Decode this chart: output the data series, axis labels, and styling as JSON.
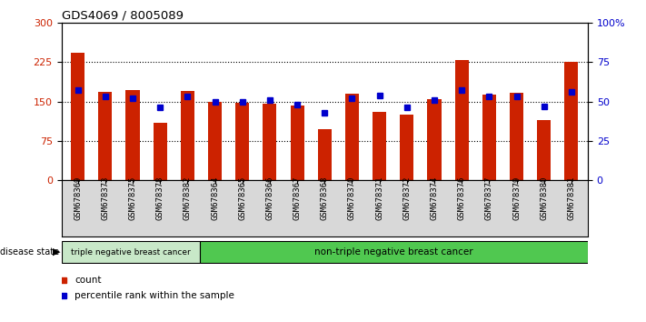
{
  "title": "GDS4069 / 8005089",
  "samples": [
    "GSM678369",
    "GSM678373",
    "GSM678375",
    "GSM678378",
    "GSM678382",
    "GSM678364",
    "GSM678365",
    "GSM678366",
    "GSM678367",
    "GSM678368",
    "GSM678370",
    "GSM678371",
    "GSM678372",
    "GSM678374",
    "GSM678376",
    "GSM678377",
    "GSM678379",
    "GSM678380",
    "GSM678381"
  ],
  "counts": [
    242,
    168,
    172,
    110,
    170,
    150,
    148,
    145,
    143,
    97,
    165,
    130,
    125,
    155,
    228,
    163,
    167,
    115,
    226
  ],
  "percentiles": [
    57,
    53,
    52,
    46,
    53,
    50,
    50,
    51,
    48,
    43,
    52,
    54,
    46,
    51,
    57,
    53,
    53,
    47,
    56
  ],
  "triple_neg_count": 5,
  "label_triple": "triple negative breast cancer",
  "label_ntriple": "non-triple negative breast cancer",
  "color_triple": "#c8e8c8",
  "color_ntriple": "#50c850",
  "y_left_ticks": [
    0,
    75,
    150,
    225,
    300
  ],
  "y_right_ticks": [
    0,
    25,
    50,
    75,
    100
  ],
  "bar_color": "#cc2200",
  "dot_color": "#0000cc",
  "tick_color_left": "#cc2200",
  "tick_color_right": "#0000cc",
  "legend_color_count": "#cc2200",
  "legend_color_pct": "#0000cc",
  "xtick_bg": "#d8d8d8",
  "plot_bg": "#ffffff"
}
